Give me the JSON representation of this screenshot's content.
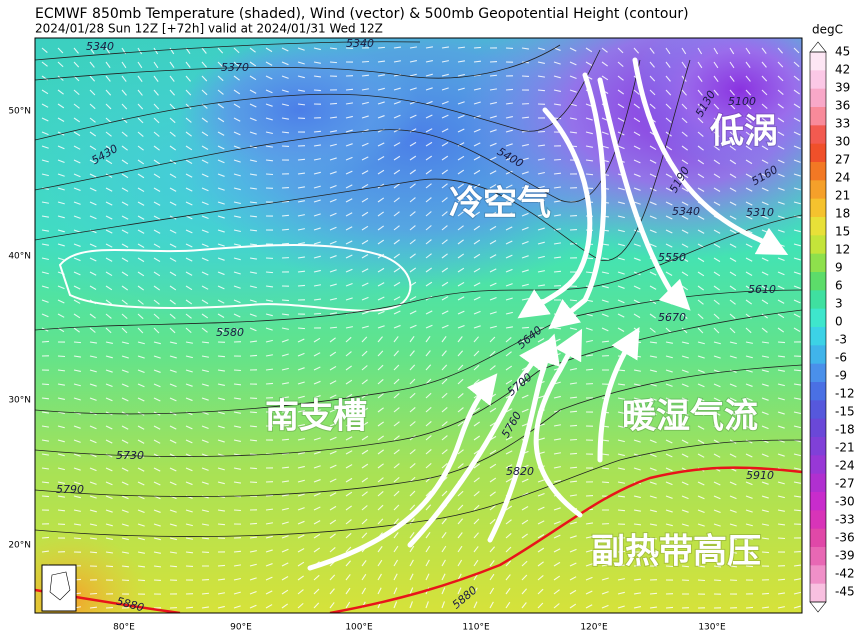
{
  "header": {
    "title": "ECMWF 850mb Temperature (shaded), Wind (vector) & 500mb Geopotential Height (contour)",
    "subtitle": "2024/01/28 Sun 12Z [+72h] valid at 2024/01/31 Wed 12Z"
  },
  "axes": {
    "lat_labels": [
      "50°N",
      "40°N",
      "30°N",
      "20°N"
    ],
    "lon_labels": [
      "80°E",
      "90°E",
      "100°E",
      "110°E",
      "120°E",
      "130°E"
    ]
  },
  "colorbar": {
    "unit": "degC",
    "ticks": [
      45,
      42,
      39,
      36,
      33,
      30,
      27,
      24,
      21,
      18,
      15,
      12,
      9,
      6,
      3,
      0,
      -3,
      -6,
      -9,
      -12,
      -15,
      -18,
      -21,
      -24,
      -27,
      -30,
      -33,
      -36,
      -39,
      -42,
      -45
    ]
  },
  "contour_labels": [
    "5340",
    "5370",
    "5340",
    "5430",
    "5400",
    "5580",
    "5640",
    "5700",
    "5730",
    "5790",
    "5880",
    "5880",
    "5100",
    "5130",
    "5160",
    "5190",
    "5310",
    "5340",
    "5550",
    "5610",
    "5670",
    "5910",
    "5820",
    "5760"
  ],
  "annotations": [
    "冷空气",
    "低涡",
    "南支槽",
    "暖湿气流",
    "副热带高压"
  ]
}
